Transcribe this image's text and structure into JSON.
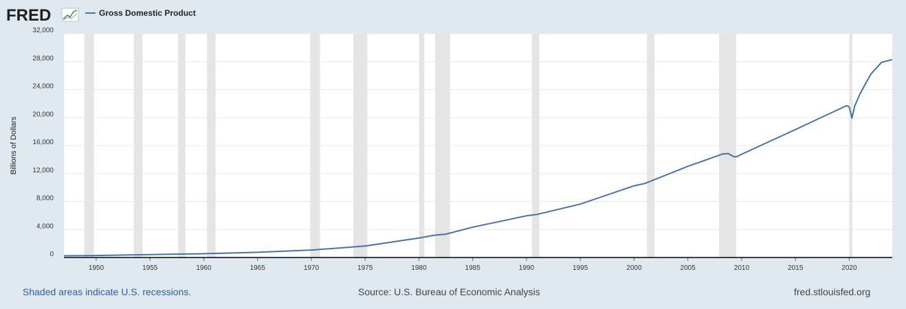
{
  "brand": {
    "logo_text": "FRED",
    "logo_icon": "chart-trend-icon"
  },
  "chart_data": {
    "type": "line",
    "title": "",
    "ylabel": "Billions of Dollars",
    "ylim": [
      0,
      32000
    ],
    "yticks": [
      0,
      4000,
      8000,
      12000,
      16000,
      20000,
      24000,
      28000,
      32000
    ],
    "ytick_labels": [
      "0",
      "4,000",
      "8,000",
      "12,000",
      "16,000",
      "20,000",
      "24,000",
      "28,000",
      "32,000"
    ],
    "xlim": [
      1947.0,
      2024.0
    ],
    "xticks": [
      1950,
      1955,
      1960,
      1965,
      1970,
      1975,
      1980,
      1985,
      1990,
      1995,
      2000,
      2005,
      2010,
      2015,
      2020
    ],
    "grid": true,
    "legend": [
      "Gross Domestic Product"
    ],
    "series": [
      {
        "name": "Gross Domestic Product",
        "color": "#4572a7",
        "x": [
          1947,
          1950,
          1955,
          1960,
          1965,
          1970,
          1975,
          1980,
          1981.5,
          1982.5,
          1985,
          1990,
          1991,
          1995,
          2000,
          2001,
          2005,
          2008.25,
          2008.75,
          2009.25,
          2009.5,
          2010,
          2015,
          2019.75,
          2020.0,
          2020.25,
          2020.5,
          2021,
          2022,
          2023,
          2024
        ],
        "values": [
          243,
          280,
          426,
          542,
          743,
          1073,
          1637,
          2790,
          3200,
          3340,
          4340,
          5960,
          6160,
          7640,
          10250,
          10580,
          13040,
          14800,
          14860,
          14430,
          14380,
          14760,
          18300,
          21700,
          21550,
          19920,
          21600,
          23400,
          26200,
          27900,
          28300
        ]
      }
    ],
    "recessions": [
      [
        1948.9,
        1949.8
      ],
      [
        1953.5,
        1954.3
      ],
      [
        1957.6,
        1958.3
      ],
      [
        1960.3,
        1961.1
      ],
      [
        1969.9,
        1970.8
      ],
      [
        1973.9,
        1975.2
      ],
      [
        1980.0,
        1980.5
      ],
      [
        1981.5,
        1982.9
      ],
      [
        1990.5,
        1991.2
      ],
      [
        2001.2,
        2001.9
      ],
      [
        2007.9,
        2009.5
      ],
      [
        2020.0,
        2020.3
      ]
    ]
  },
  "footer": {
    "note": "Shaded areas indicate U.S. recessions.",
    "source": "Source: U.S. Bureau of Economic Analysis",
    "site": "fred.stlouisfed.org"
  }
}
